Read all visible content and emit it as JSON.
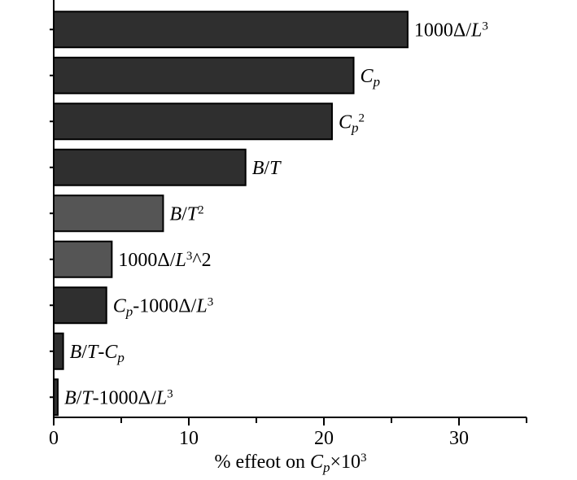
{
  "chart_data": {
    "type": "bar",
    "orientation": "horizontal",
    "xlabel": "% effeot on Cp×10³",
    "xlabel_parts": {
      "pre": "% effeot on ",
      "var": "C",
      "sub": "p",
      "mid": "×10",
      "sup": "3"
    },
    "xlim": [
      0,
      35
    ],
    "xticks": [
      0,
      10,
      20,
      30
    ],
    "xtick_labels": [
      "0",
      "10",
      "20",
      "30"
    ],
    "colors": {
      "dark": "#2f2f2f",
      "medium": "#555555",
      "stroke": "#000000"
    },
    "categories": [
      "1000Δ/L³",
      "Cp",
      "Cp²",
      "B/T",
      "B/T²",
      "1000Δ/L³^2",
      "Cp-1000Δ/L³",
      "B/T-Cp",
      "B/T-1000Δ/L³"
    ],
    "values": [
      26.2,
      22.2,
      20.6,
      14.2,
      8.1,
      4.3,
      3.9,
      0.7,
      0.3
    ],
    "bar_colors": [
      "dark",
      "dark",
      "dark",
      "dark",
      "medium",
      "medium",
      "dark",
      "dark",
      "dark"
    ],
    "label_parts": [
      [
        {
          "t": "1000Δ/"
        },
        {
          "t": "L",
          "i": true
        },
        {
          "t": "3",
          "sup": true
        }
      ],
      [
        {
          "t": "C",
          "i": true
        },
        {
          "t": "p",
          "i": true,
          "sub": true
        }
      ],
      [
        {
          "t": "C",
          "i": true
        },
        {
          "t": "p",
          "i": true,
          "sub": true
        },
        {
          "t": "2",
          "sup": true
        }
      ],
      [
        {
          "t": "B",
          "i": true
        },
        {
          "t": "/"
        },
        {
          "t": "T",
          "i": true
        }
      ],
      [
        {
          "t": "B",
          "i": true
        },
        {
          "t": "/"
        },
        {
          "t": "T",
          "i": true
        },
        {
          "t": "2",
          "sup": true
        }
      ],
      [
        {
          "t": "1000Δ/"
        },
        {
          "t": "L",
          "i": true
        },
        {
          "t": "3",
          "sup": true
        },
        {
          "t": "^2"
        }
      ],
      [
        {
          "t": "C",
          "i": true
        },
        {
          "t": "p",
          "i": true,
          "sub": true
        },
        {
          "t": "-1000Δ/"
        },
        {
          "t": "L",
          "i": true
        },
        {
          "t": "3",
          "sup": true
        }
      ],
      [
        {
          "t": "B",
          "i": true
        },
        {
          "t": "/"
        },
        {
          "t": "T",
          "i": true
        },
        {
          "t": "-"
        },
        {
          "t": "C",
          "i": true
        },
        {
          "t": "p",
          "i": true,
          "sub": true
        }
      ],
      [
        {
          "t": "B",
          "i": true
        },
        {
          "t": "/"
        },
        {
          "t": "T",
          "i": true
        },
        {
          "t": "-1000Δ/"
        },
        {
          "t": "L",
          "i": true
        },
        {
          "t": "3",
          "sup": true
        }
      ]
    ]
  }
}
